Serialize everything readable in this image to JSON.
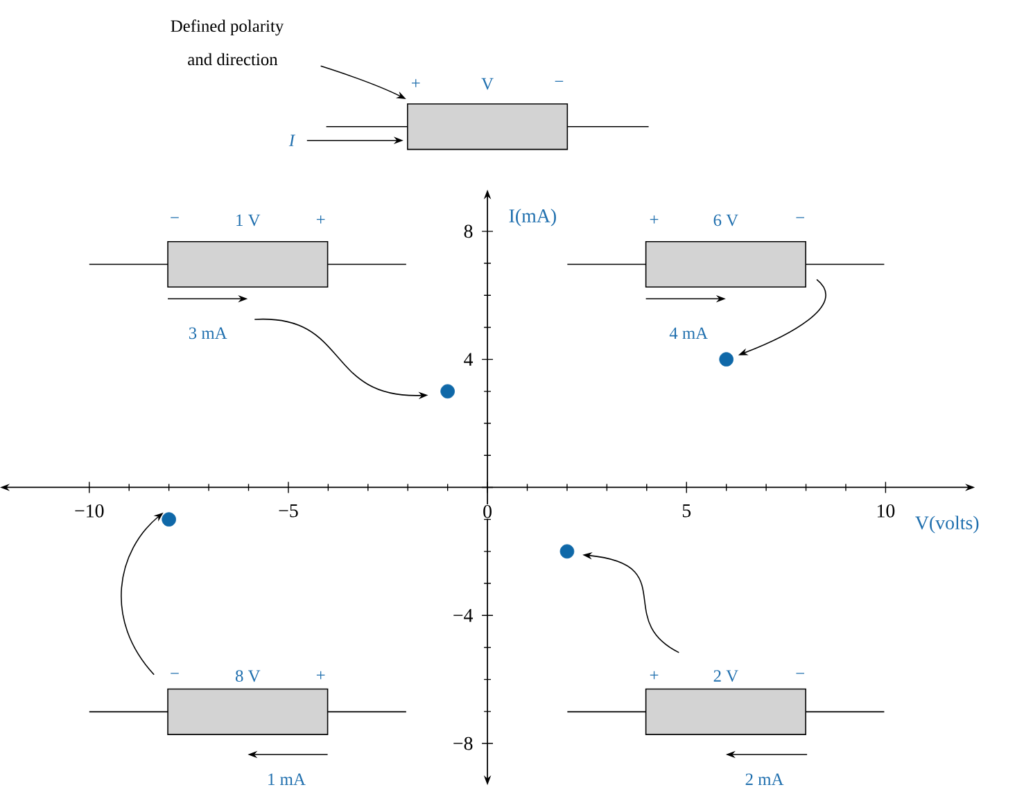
{
  "chart_data": {
    "type": "scatter",
    "xlabel": "V(volts)",
    "ylabel": "I(mA)",
    "x": [
      -1,
      6,
      -8,
      2
    ],
    "values": [
      3,
      4,
      -1,
      -2
    ],
    "color": "#0f68a8",
    "xlim": [
      -12,
      12
    ],
    "ylim": [
      -9,
      9
    ],
    "xticks": [
      {
        "value": -10,
        "label": "−10"
      },
      {
        "value": -5,
        "label": "−5"
      },
      0,
      5,
      10
    ],
    "yticks": [
      8,
      4,
      {
        "value": 0,
        "label": null
      },
      {
        "value": -4,
        "label": "−4"
      },
      {
        "value": -8,
        "label": "−8"
      }
    ],
    "annotations": [
      "Defined polarity",
      "and direction",
      "+",
      "V",
      "−",
      "I",
      "−",
      "1 V",
      "+",
      "3 mA",
      "+",
      "6 V",
      "−",
      "4 mA",
      {
        "text": "−",
        "x": -8,
        "y": -1
      },
      "8 V",
      "+",
      "1 mA",
      "+",
      "2 V",
      "−",
      "2 mA"
    ]
  }
}
